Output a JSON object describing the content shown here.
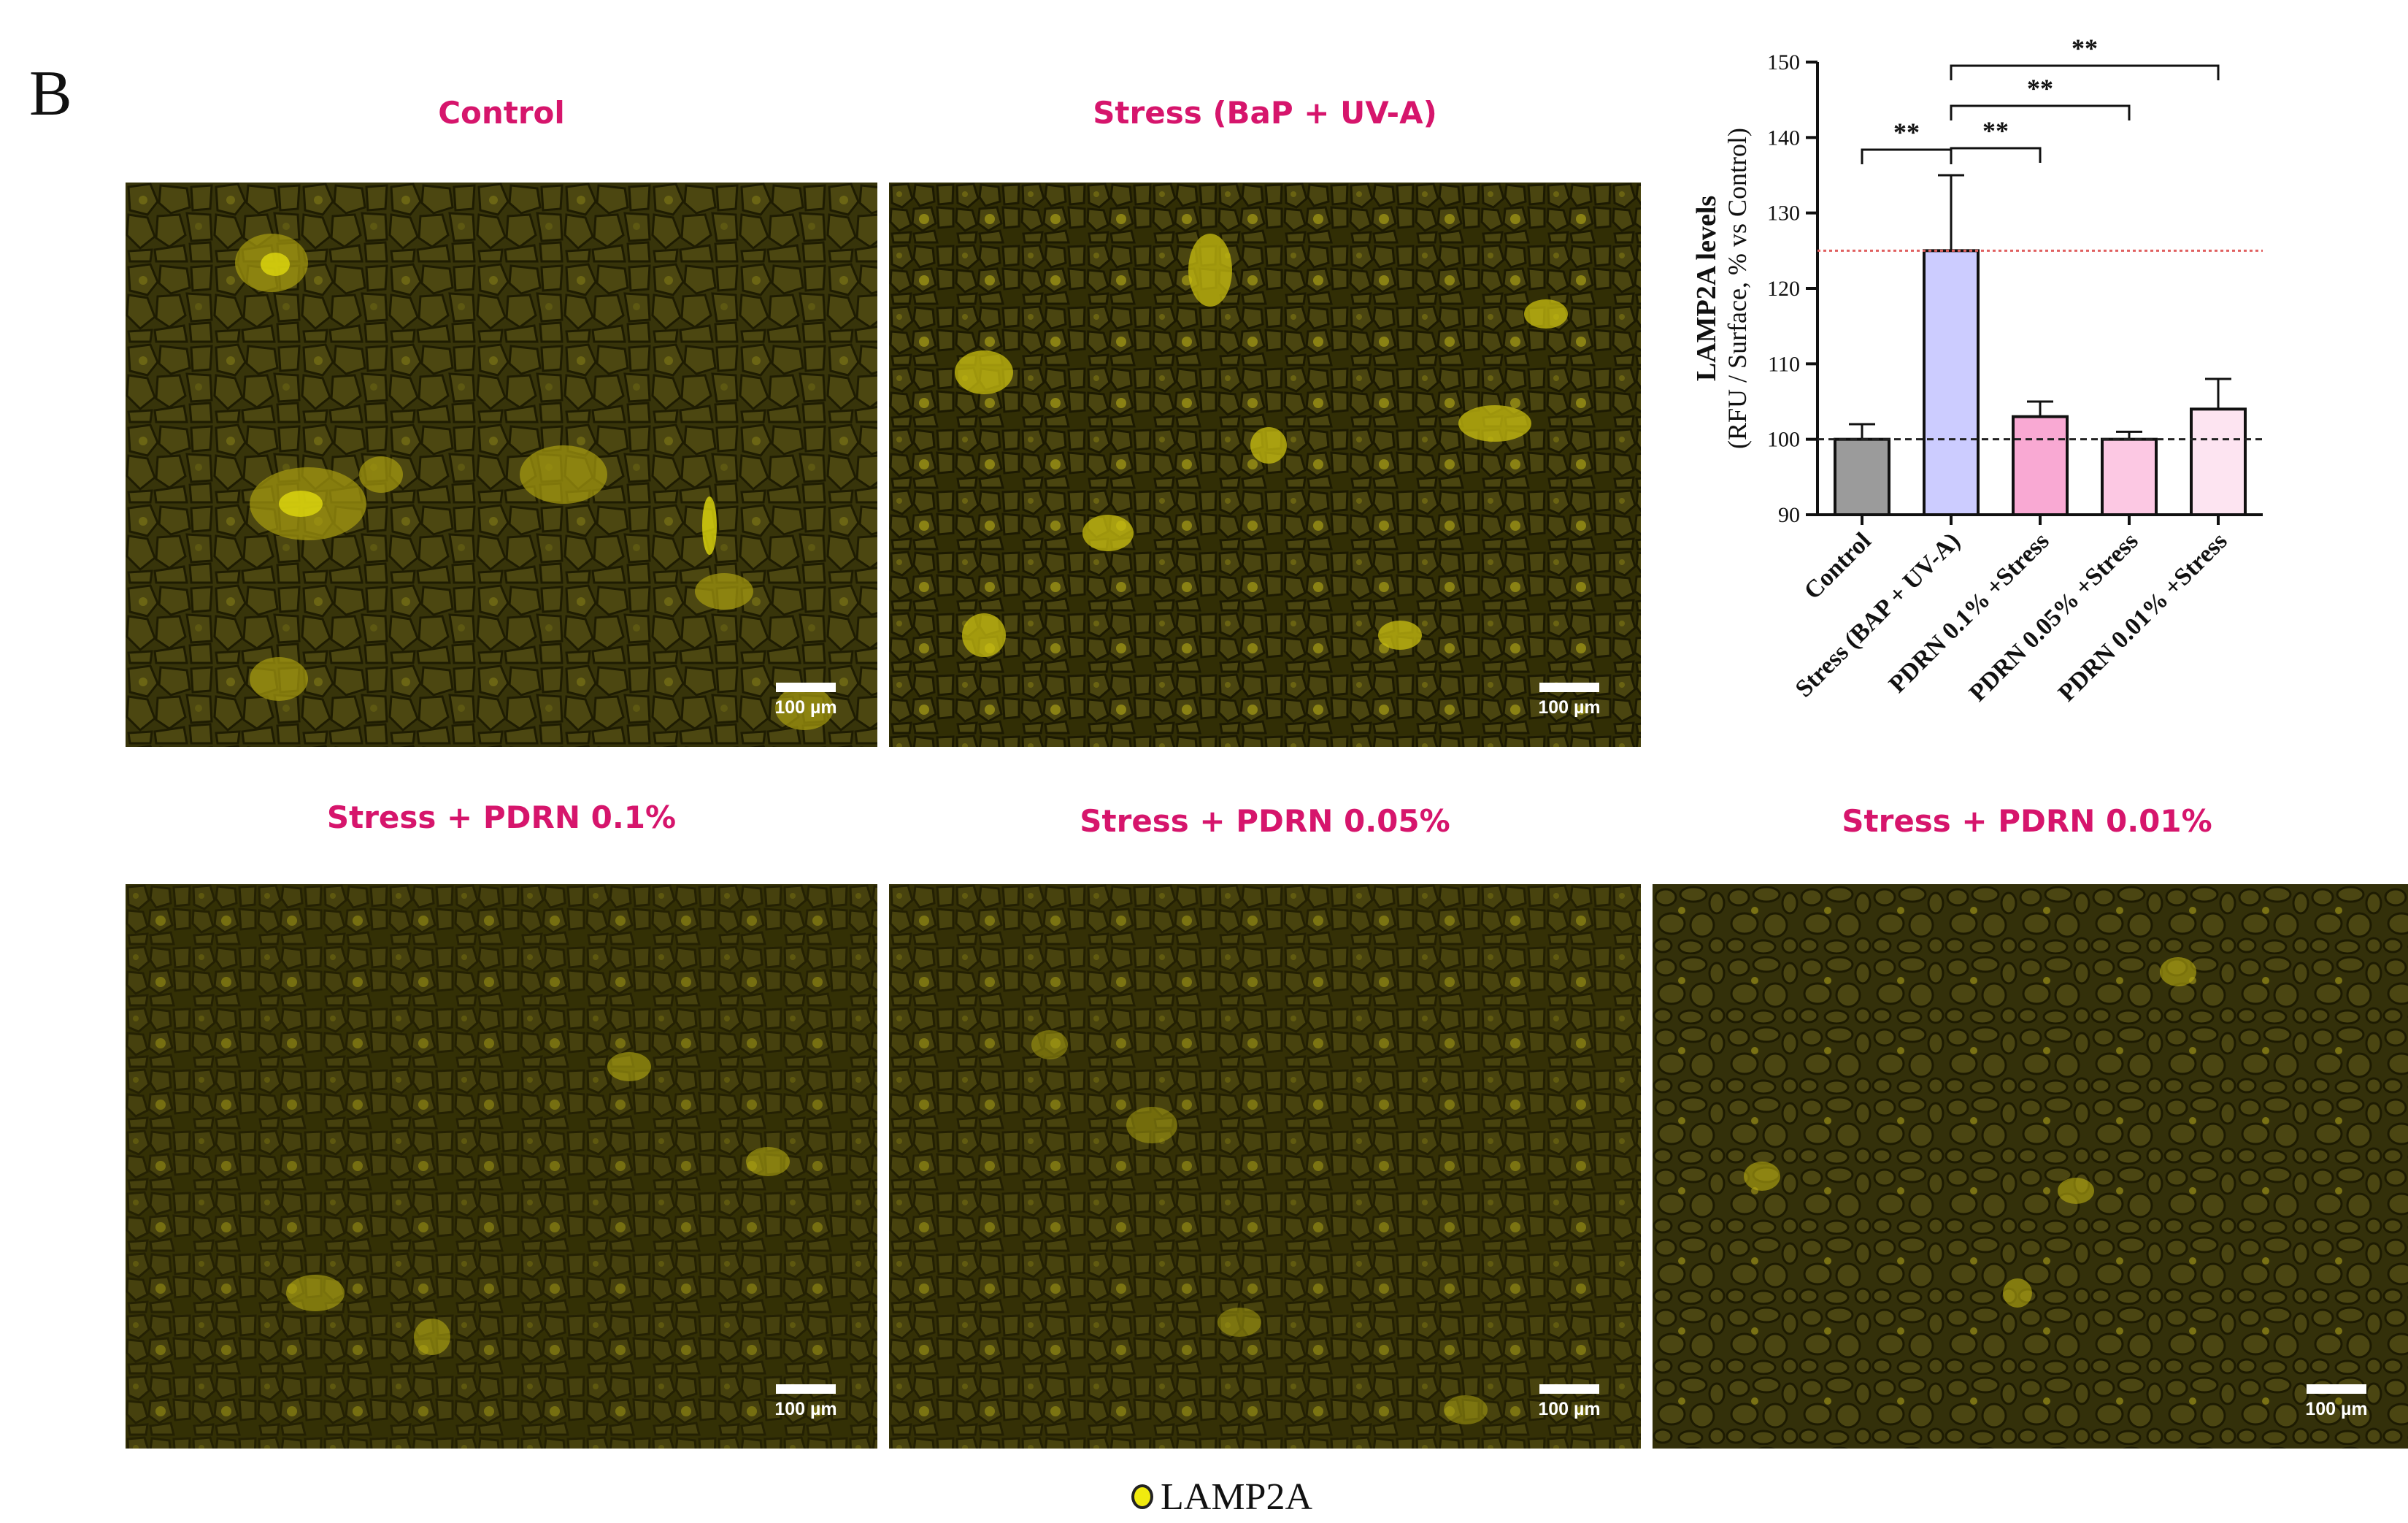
{
  "panel_label": "B",
  "images": [
    {
      "title": "Control",
      "scalebar": "100 µm"
    },
    {
      "title": "Stress (BaP + UV-A)",
      "scalebar": "100 µm"
    },
    {
      "title": "Stress + PDRN 0.1%",
      "scalebar": "100 µm"
    },
    {
      "title": "Stress + PDRN 0.05%",
      "scalebar": "100 µm"
    },
    {
      "title": "Stress + PDRN 0.01%",
      "scalebar": "100 µm"
    }
  ],
  "legend": {
    "label": "LAMP2A",
    "color": "#f0ea0f"
  },
  "chart_data": {
    "type": "bar",
    "title": "",
    "ylabel_line1": "LAMP2A levels",
    "ylabel_line2": "(RFU / Surface, % vs Control)",
    "xlabel": "",
    "ylim": [
      90,
      150
    ],
    "yticks": [
      90,
      100,
      110,
      120,
      130,
      140,
      150
    ],
    "categories": [
      "Control",
      "Stress (BAP + UV-A)",
      "PDRN 0.1% +Stress",
      "PDRN 0.05% +Stress",
      "PDRN 0.01% +Stress"
    ],
    "values": [
      100,
      125,
      103,
      100,
      104
    ],
    "errors": [
      2,
      10,
      2,
      1,
      4
    ],
    "colors": [
      "#9b9b9b",
      "#ccccff",
      "#f9a9d3",
      "#fcc8e3",
      "#fde4f1"
    ],
    "reference_lines": [
      {
        "value": 125,
        "color": "#e06060",
        "style": "dotted"
      },
      {
        "value": 100,
        "color": "#222222",
        "style": "dashed"
      }
    ],
    "significance": [
      {
        "from": 0,
        "to": 1,
        "label": "**"
      },
      {
        "from": 1,
        "to": 2,
        "label": "**"
      },
      {
        "from": 1,
        "to": 3,
        "label": "**"
      },
      {
        "from": 1,
        "to": 4,
        "label": "**"
      }
    ]
  }
}
